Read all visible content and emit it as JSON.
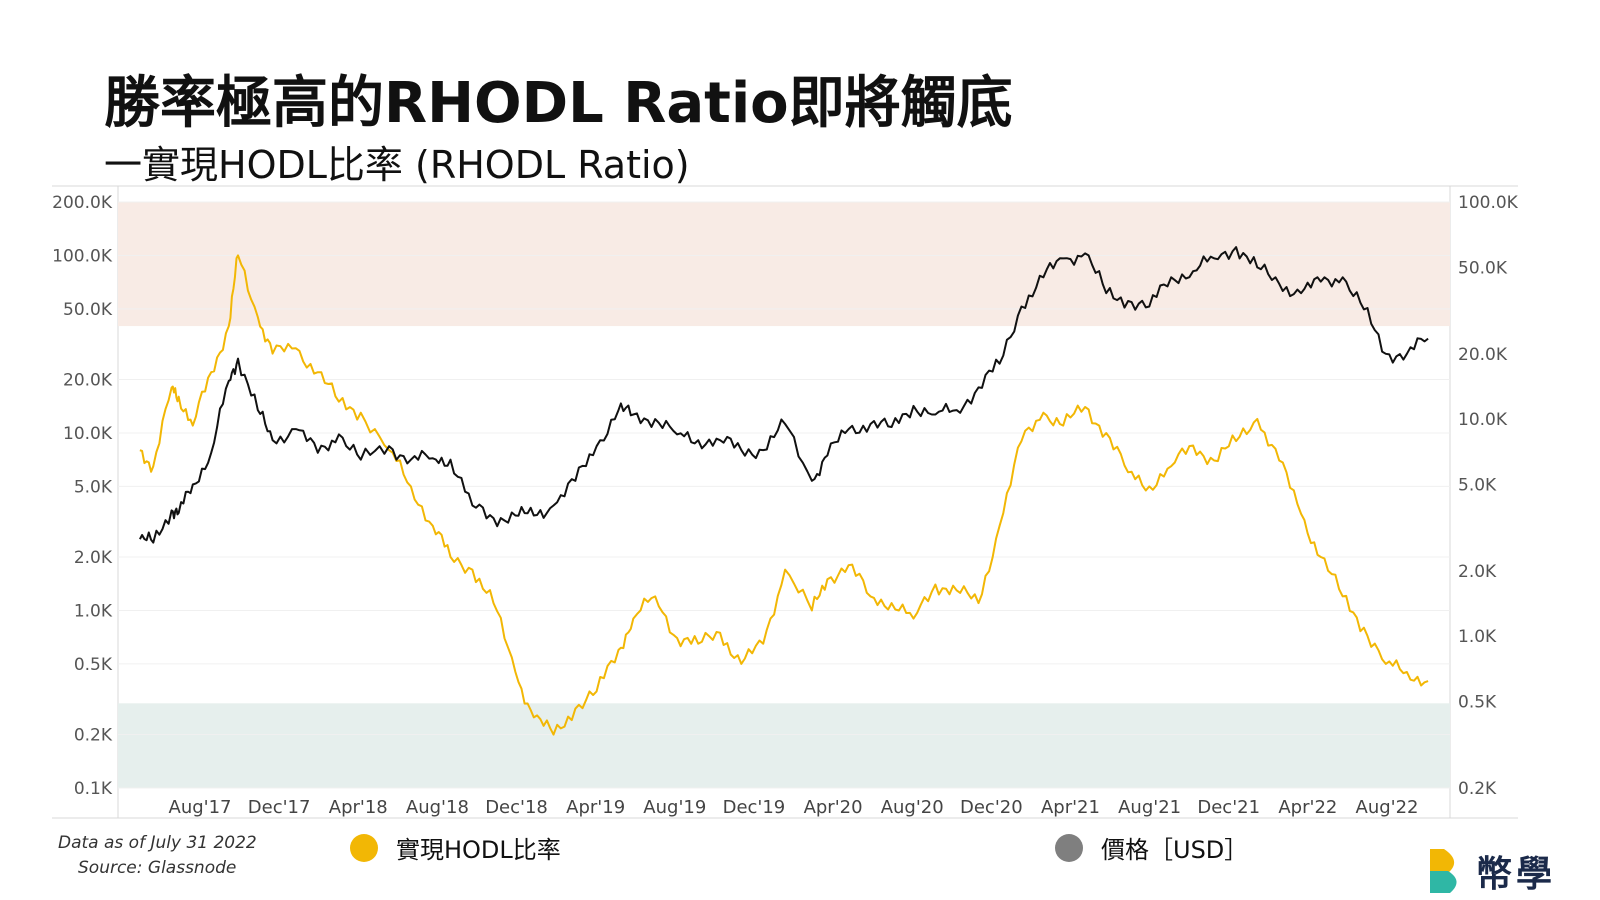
{
  "header": {
    "title": "勝率極高的RHODL Ratio即將觸底",
    "subtitle": "一實現HODL比率 (RHODL Ratio)"
  },
  "footer": {
    "data_note": "Data as of July 31 2022",
    "source_note": "Source: Glassnode",
    "logo_text": "幣學"
  },
  "legend": {
    "rhodl_label": "實現HODL比率",
    "price_label": "價格［USD］"
  },
  "colors": {
    "rhodl": "#f2b705",
    "price": "#111111",
    "legend_price_dot": "#7f7f7f",
    "top_band": "#f8ebe5",
    "bottom_band": "#e6efed",
    "logo_yellow": "#f2b705",
    "logo_teal": "#2fb7a5"
  },
  "chart_data": {
    "type": "line",
    "title": "",
    "x_ticks": [
      "Aug'17",
      "Dec'17",
      "Apr'18",
      "Aug'18",
      "Dec'18",
      "Apr'19",
      "Aug'19",
      "Dec'19",
      "Apr'20",
      "Aug'20",
      "Dec'20",
      "Apr'21",
      "Aug'21",
      "Dec'21",
      "Apr'22",
      "Aug'22"
    ],
    "x_range": [
      "2017-07-01",
      "2022-08-31"
    ],
    "left_axis": {
      "scale": "log",
      "ylim": [
        100,
        200000
      ],
      "ticks": [
        200000,
        100000,
        50000,
        20000,
        10000,
        5000,
        2000,
        1000,
        500,
        200,
        100
      ],
      "tick_labels": [
        "200.0K",
        "100.0K",
        "50.0K",
        "20.0K",
        "10.0K",
        "5.0K",
        "2.0K",
        "1.0K",
        "0.5K",
        "0.2K",
        "0.1K"
      ]
    },
    "right_axis": {
      "scale": "log",
      "ylim": [
        200,
        100000
      ],
      "ticks": [
        100000,
        50000,
        20000,
        10000,
        5000,
        2000,
        1000,
        500,
        200
      ],
      "tick_labels": [
        "100.0K",
        "50.0K",
        "20.0K",
        "10.0K",
        "5.0K",
        "2.0K",
        "1.0K",
        "0.5K",
        "0.2K"
      ]
    },
    "bands": [
      {
        "axis": "left",
        "from": 40000,
        "to": 200000,
        "color": "#f8ebe5"
      },
      {
        "axis": "left",
        "from": 100,
        "to": 300,
        "color": "#e6efed"
      }
    ],
    "series": [
      {
        "name": "實現HODL比率",
        "axis": "left",
        "color": "#f2b705",
        "x": [
          "2017-08-01",
          "2017-08-20",
          "2017-09-15",
          "2017-09-25",
          "2017-10-15",
          "2017-11-10",
          "2017-12-05",
          "2017-12-18",
          "2018-01-15",
          "2018-02-05",
          "2018-03-10",
          "2018-04-10",
          "2018-05-10",
          "2018-06-10",
          "2018-07-20",
          "2018-08-20",
          "2018-09-20",
          "2018-10-15",
          "2018-11-15",
          "2018-12-15",
          "2019-01-15",
          "2019-02-10",
          "2019-03-10",
          "2019-04-10",
          "2019-05-10",
          "2019-06-10",
          "2019-07-01",
          "2019-08-01",
          "2019-09-01",
          "2019-10-01",
          "2019-11-01",
          "2019-12-01",
          "2020-01-01",
          "2020-02-01",
          "2020-03-10",
          "2020-04-01",
          "2020-05-01",
          "2020-06-01",
          "2020-07-01",
          "2020-08-01",
          "2020-09-01",
          "2020-10-01",
          "2020-11-01",
          "2020-12-01",
          "2021-01-01",
          "2021-02-01",
          "2021-03-01",
          "2021-04-01",
          "2021-05-01",
          "2021-06-01",
          "2021-07-01",
          "2021-08-01",
          "2021-09-01",
          "2021-10-01",
          "2021-11-01",
          "2021-12-01",
          "2022-01-01",
          "2022-02-01",
          "2022-03-01",
          "2022-04-01",
          "2022-05-01",
          "2022-06-01",
          "2022-07-01",
          "2022-07-31"
        ],
        "values": [
          8000,
          6500,
          18000,
          16000,
          11000,
          22000,
          40000,
          100000,
          45000,
          28000,
          30000,
          22000,
          15000,
          13000,
          8000,
          5000,
          3000,
          2000,
          1700,
          1100,
          450,
          250,
          200,
          280,
          350,
          600,
          900,
          1200,
          700,
          650,
          750,
          500,
          650,
          1700,
          1000,
          1500,
          1800,
          1200,
          1100,
          900,
          1400,
          1300,
          1100,
          3000,
          9000,
          13000,
          11000,
          14000,
          10000,
          6000,
          5000,
          6500,
          8500,
          7000,
          9000,
          12000,
          7000,
          3500,
          2000,
          1200,
          800,
          500,
          450,
          400
        ]
      },
      {
        "name": "價格［USD］",
        "axis": "right",
        "color": "#111111",
        "x": [
          "2017-08-01",
          "2017-08-20",
          "2017-09-15",
          "2017-09-25",
          "2017-10-15",
          "2017-11-10",
          "2017-12-05",
          "2017-12-18",
          "2018-01-15",
          "2018-02-05",
          "2018-03-10",
          "2018-04-10",
          "2018-05-10",
          "2018-06-10",
          "2018-07-20",
          "2018-08-20",
          "2018-09-20",
          "2018-10-15",
          "2018-11-15",
          "2018-12-15",
          "2019-01-15",
          "2019-02-10",
          "2019-03-10",
          "2019-04-10",
          "2019-05-10",
          "2019-06-10",
          "2019-07-01",
          "2019-08-01",
          "2019-09-01",
          "2019-10-01",
          "2019-11-01",
          "2019-12-01",
          "2020-01-01",
          "2020-02-01",
          "2020-03-10",
          "2020-04-01",
          "2020-05-01",
          "2020-06-01",
          "2020-07-01",
          "2020-08-01",
          "2020-09-01",
          "2020-10-01",
          "2020-11-01",
          "2020-12-01",
          "2021-01-01",
          "2021-02-01",
          "2021-03-01",
          "2021-04-01",
          "2021-05-01",
          "2021-06-01",
          "2021-07-01",
          "2021-08-01",
          "2021-09-01",
          "2021-10-01",
          "2021-11-01",
          "2021-12-01",
          "2022-01-01",
          "2022-02-01",
          "2022-03-01",
          "2022-04-01",
          "2022-05-01",
          "2022-06-01",
          "2022-07-01",
          "2022-07-31"
        ],
        "values": [
          2800,
          2700,
          3800,
          3700,
          5000,
          7000,
          15000,
          19000,
          11000,
          8000,
          9000,
          7000,
          8500,
          6500,
          7500,
          6500,
          6600,
          6500,
          4000,
          3500,
          3600,
          3600,
          4000,
          5200,
          7500,
          11000,
          10500,
          10000,
          8500,
          8000,
          8000,
          7200,
          7200,
          9500,
          5200,
          6800,
          9000,
          9500,
          9200,
          11500,
          10500,
          11000,
          14000,
          18000,
          33000,
          45000,
          55000,
          58000,
          38000,
          35000,
          33000,
          45000,
          48000,
          55000,
          62000,
          50000,
          42000,
          38000,
          43000,
          45000,
          32000,
          20000,
          20000,
          23500
        ]
      }
    ]
  }
}
